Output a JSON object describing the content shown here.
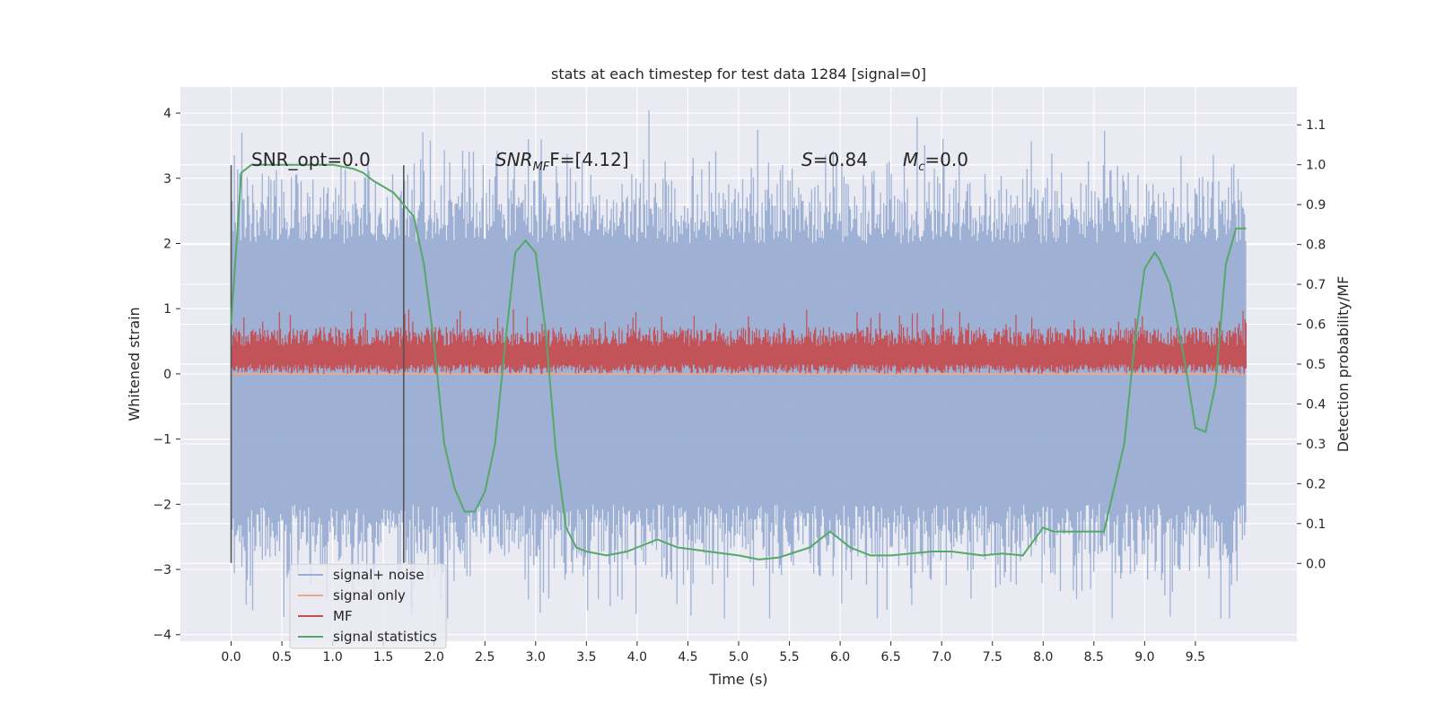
{
  "chart_data": {
    "type": "line",
    "title": "stats at each timestep for test data 1284 [signal=0]",
    "xlabel": "Time (s)",
    "ylabel": "Whitened strain",
    "y2label": "Detection probability/MF",
    "xlim": [
      -0.5,
      10.5
    ],
    "ylim": [
      -4.1,
      4.4
    ],
    "y2lim": [
      -0.195,
      1.195
    ],
    "xticks": [
      "0.0",
      "0.5",
      "1.0",
      "1.5",
      "2.0",
      "2.5",
      "3.0",
      "3.5",
      "4.0",
      "4.5",
      "5.0",
      "5.5",
      "6.0",
      "6.5",
      "7.0",
      "7.5",
      "8.0",
      "8.5",
      "9.0",
      "9.5"
    ],
    "yticks": [
      "4",
      "3",
      "2",
      "1",
      "0",
      "−1",
      "−2",
      "−3",
      "−4"
    ],
    "y2ticks": [
      "1.1",
      "1.0",
      "0.9",
      "0.8",
      "0.7",
      "0.6",
      "0.5",
      "0.4",
      "0.3",
      "0.2",
      "0.1",
      "0.0"
    ],
    "grid": true,
    "legend_position": "bottom-left",
    "annotations": {
      "snr_opt": "SNR_opt=0.0",
      "snr_mf_base": "SNR",
      "snr_mf_sub": "MF",
      "snr_mf_rest": "F=[4.12]",
      "s_base": "S",
      "s_rest": "=0.84",
      "mc_base": "M",
      "mc_sub": "c",
      "mc_rest": "=0.0"
    },
    "vlines": [
      {
        "x": 0.0,
        "y_from": -2.9,
        "y_to": 3.2
      },
      {
        "x": 1.7,
        "y_from": -2.9,
        "y_to": 3.2
      }
    ],
    "series": [
      {
        "name": "signal+ noise",
        "color": "#9aaed3",
        "kind": "noise",
        "x_range": [
          0,
          10
        ],
        "envelope": {
          "typical": 2.0,
          "peak_max": 4.05,
          "peak_min": -3.75
        }
      },
      {
        "name": "signal only",
        "color": "#e8a98c",
        "kind": "flat",
        "value": 0.0
      },
      {
        "name": "MF",
        "color": "#c44e52",
        "kind": "mf",
        "x_range": [
          0,
          10
        ],
        "envelope": {
          "low": 0.0,
          "high": 0.75,
          "spike_max": 1.0
        }
      },
      {
        "name": "signal statistics",
        "color": "#55a868",
        "kind": "line",
        "axis": "right",
        "x": [
          0.0,
          0.1,
          0.15,
          0.2,
          0.5,
          1.0,
          1.2,
          1.3,
          1.4,
          1.6,
          1.8,
          1.9,
          2.0,
          2.1,
          2.2,
          2.3,
          2.4,
          2.5,
          2.6,
          2.7,
          2.8,
          2.9,
          3.0,
          3.1,
          3.2,
          3.3,
          3.4,
          3.5,
          3.7,
          3.9,
          4.0,
          4.2,
          4.4,
          4.7,
          5.0,
          5.2,
          5.4,
          5.7,
          5.9,
          6.1,
          6.3,
          6.5,
          6.9,
          7.1,
          7.4,
          7.6,
          7.8,
          8.0,
          8.1,
          8.3,
          8.6,
          8.8,
          8.9,
          9.0,
          9.1,
          9.15,
          9.25,
          9.4,
          9.5,
          9.6,
          9.7,
          9.8,
          9.9,
          10.0
        ],
        "y": [
          0.6,
          0.98,
          0.99,
          1.0,
          1.0,
          1.0,
          0.99,
          0.98,
          0.96,
          0.93,
          0.87,
          0.75,
          0.55,
          0.3,
          0.19,
          0.13,
          0.13,
          0.18,
          0.3,
          0.55,
          0.78,
          0.81,
          0.78,
          0.58,
          0.28,
          0.09,
          0.04,
          0.03,
          0.02,
          0.03,
          0.04,
          0.06,
          0.04,
          0.03,
          0.02,
          0.01,
          0.015,
          0.04,
          0.08,
          0.04,
          0.02,
          0.02,
          0.03,
          0.03,
          0.02,
          0.025,
          0.02,
          0.09,
          0.08,
          0.08,
          0.08,
          0.3,
          0.55,
          0.74,
          0.78,
          0.76,
          0.7,
          0.5,
          0.34,
          0.33,
          0.45,
          0.75,
          0.84,
          0.84
        ]
      }
    ]
  }
}
